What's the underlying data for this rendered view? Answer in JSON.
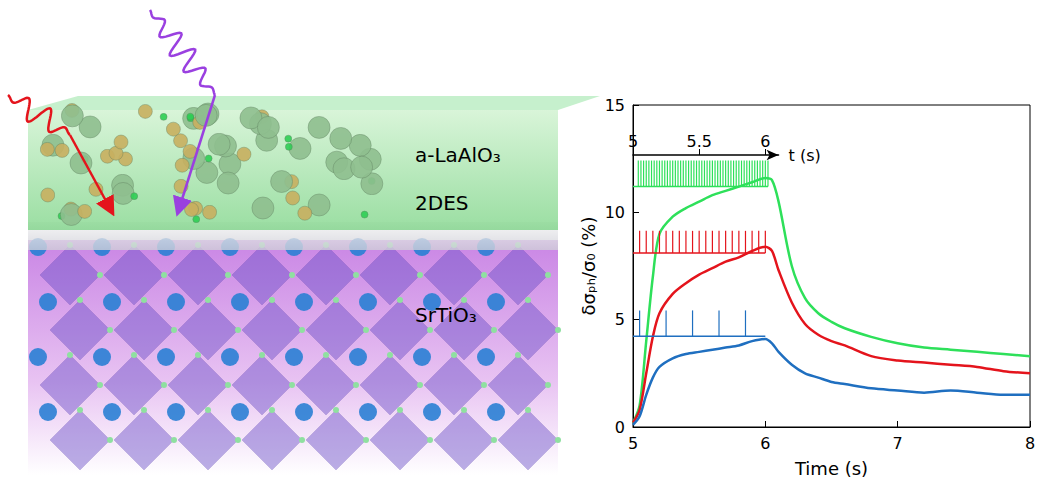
{
  "chart_data": {
    "type": "line",
    "xlabel": "Time (s)",
    "ylabel": "δσₚₕ/σ₀ (%)",
    "xlim": [
      5,
      8
    ],
    "xticks": [
      5,
      6,
      7,
      8
    ],
    "ylim": [
      0,
      15
    ],
    "yticks": [
      0,
      5,
      10,
      15
    ],
    "grid": false,
    "x": [
      5.0,
      5.05,
      5.1,
      5.15,
      5.2,
      5.3,
      5.4,
      5.5,
      5.6,
      5.7,
      5.8,
      5.9,
      6.0,
      6.05,
      6.1,
      6.2,
      6.3,
      6.4,
      6.5,
      6.6,
      6.8,
      7.0,
      7.2,
      7.4,
      7.6,
      7.8,
      8.0
    ],
    "series": [
      {
        "color": "#2ee05a",
        "values": [
          0.2,
          1.0,
          4.0,
          7.0,
          9.0,
          9.8,
          10.2,
          10.5,
          10.8,
          11.0,
          11.2,
          11.4,
          11.6,
          11.5,
          10.5,
          7.5,
          6.0,
          5.3,
          4.9,
          4.6,
          4.2,
          3.9,
          3.7,
          3.6,
          3.5,
          3.4,
          3.3
        ],
        "pulses": [
          5.04,
          5.06,
          5.08,
          5.1,
          5.12,
          5.14,
          5.16,
          5.18,
          5.2,
          5.22,
          5.24,
          5.26,
          5.28,
          5.3,
          5.32,
          5.34,
          5.36,
          5.38,
          5.4,
          5.42,
          5.44,
          5.46,
          5.48,
          5.5,
          5.52,
          5.54,
          5.56,
          5.58,
          5.6,
          5.62,
          5.64,
          5.66,
          5.68,
          5.7,
          5.72,
          5.74,
          5.76,
          5.78,
          5.8,
          5.82,
          5.84,
          5.86,
          5.88,
          5.9,
          5.92,
          5.94,
          5.96,
          5.98,
          6.0,
          6.02
        ]
      },
      {
        "color": "#e4141c",
        "values": [
          0.2,
          0.8,
          2.5,
          4.2,
          5.3,
          6.2,
          6.7,
          7.1,
          7.4,
          7.7,
          7.9,
          8.2,
          8.4,
          8.2,
          7.3,
          5.8,
          4.8,
          4.3,
          4.0,
          3.8,
          3.3,
          3.1,
          3.0,
          2.9,
          2.8,
          2.6,
          2.5
        ],
        "pulses": [
          5.05,
          5.1,
          5.15,
          5.2,
          5.25,
          5.3,
          5.35,
          5.4,
          5.45,
          5.5,
          5.55,
          5.6,
          5.65,
          5.7,
          5.75,
          5.8,
          5.85,
          5.9,
          5.95,
          6.0
        ]
      },
      {
        "color": "#1f6fc0",
        "values": [
          0.1,
          0.5,
          1.5,
          2.3,
          2.8,
          3.2,
          3.4,
          3.5,
          3.6,
          3.7,
          3.8,
          4.0,
          4.1,
          3.9,
          3.5,
          2.9,
          2.5,
          2.3,
          2.1,
          2.0,
          1.8,
          1.7,
          1.6,
          1.7,
          1.6,
          1.5,
          1.5
        ],
        "pulses": [
          5.05,
          5.25,
          5.45,
          5.65,
          5.85
        ]
      }
    ],
    "inset": {
      "xlim": [
        5,
        6.1
      ],
      "xticks": [
        5,
        5.5,
        6
      ],
      "xlabel": "t (s)"
    }
  },
  "diagram": {
    "labels": [
      "a-LaAlO₃",
      "2DES",
      "SrTiO₃"
    ]
  }
}
